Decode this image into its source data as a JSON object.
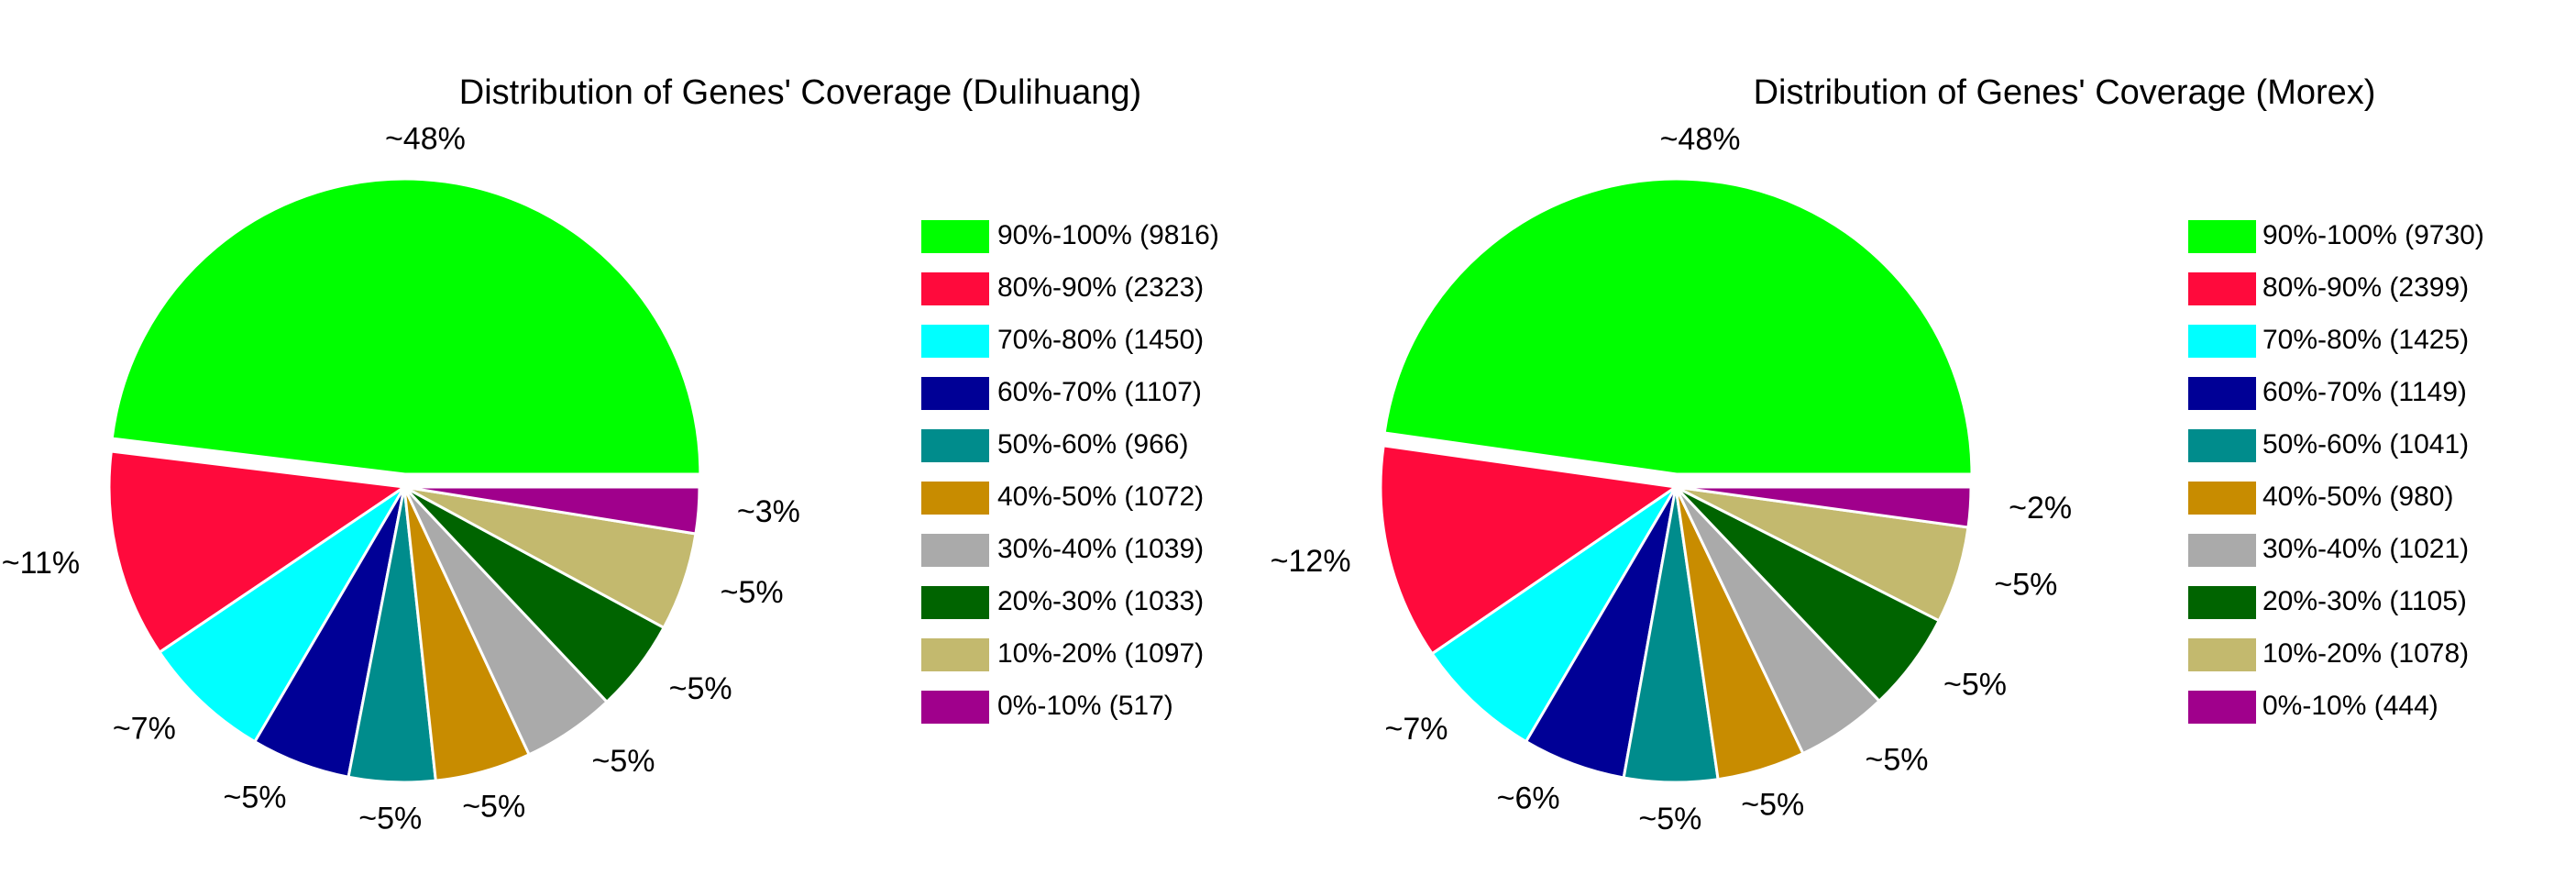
{
  "chart_data": [
    {
      "type": "pie",
      "title": "Distribution of Genes' Coverage (Dulihuang)",
      "categories": [
        "90%-100% (9816)",
        "80%-90% (2323)",
        "70%-80% (1450)",
        "60%-70% (1107)",
        "50%-60% (966)",
        "40%-50% (1072)",
        "30%-40% (1039)",
        "20%-30% (1033)",
        "10%-20% (1097)",
        "0%-10% (517)"
      ],
      "values": [
        48.07,
        11.38,
        7.1,
        5.42,
        4.73,
        5.25,
        5.09,
        5.06,
        5.37,
        2.53
      ],
      "value_labels": [
        "~48%",
        "~11%",
        "~7%",
        "~5%",
        "~5%",
        "~5%",
        "~5%",
        "~5%",
        "~5%",
        "~3%"
      ],
      "colors": [
        "#00ff00",
        "#ff0a3c",
        "#00ffff",
        "#000096",
        "#008c8c",
        "#c88c00",
        "#aaaaaa",
        "#006400",
        "#c3b96e",
        "#a0008c"
      ]
    },
    {
      "type": "pie",
      "title": "Distribution of Genes' Coverage (Morex)",
      "categories": [
        "90%-100% (9730)",
        "80%-90% (2399)",
        "70%-80% (1425)",
        "60%-70% (1149)",
        "50%-60% (1041)",
        "40%-50% (980)",
        "30%-40% (1021)",
        "20%-30% (1105)",
        "10%-20% (1078)",
        "0%-10% (444)"
      ],
      "values": [
        47.76,
        11.78,
        6.99,
        5.64,
        5.11,
        4.81,
        5.01,
        5.42,
        5.29,
        2.18
      ],
      "value_labels": [
        "~48%",
        "~12%",
        "~7%",
        "~6%",
        "~5%",
        "~5%",
        "~5%",
        "~5%",
        "~5%",
        "~2%"
      ],
      "colors": [
        "#00ff00",
        "#ff0a3c",
        "#00ffff",
        "#000096",
        "#008c8c",
        "#c88c00",
        "#aaaaaa",
        "#006400",
        "#c3b96e",
        "#a0008c"
      ]
    }
  ]
}
